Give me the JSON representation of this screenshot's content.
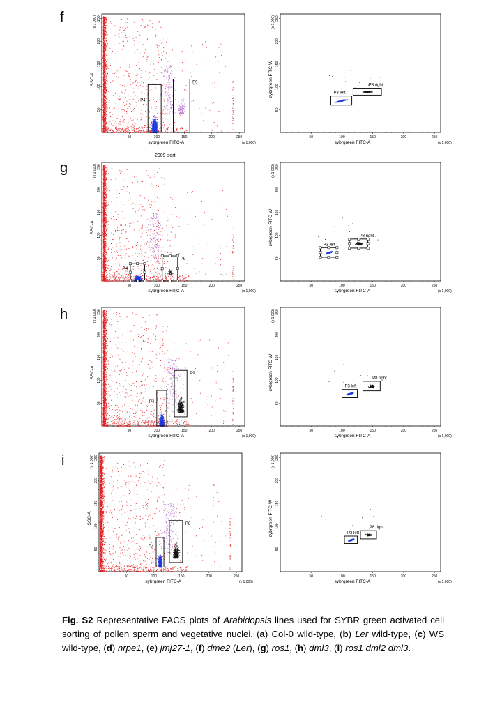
{
  "figure": {
    "panels": [
      {
        "letter": "f",
        "left": {
          "title": "",
          "xlabel": "sybrgreen FITC-A",
          "ylabel": "SSC-A",
          "x_ticks": [
            "50",
            "100",
            "150",
            "200",
            "250"
          ],
          "y_ticks": [
            "50",
            "100",
            "150",
            "200",
            "250"
          ],
          "x_scale": "(x 1,000)",
          "y_scale": "(x 1,000)",
          "gates": [
            {
              "label": "P4",
              "x": [
                84,
                108
              ],
              "y": [
                0,
                105
              ],
              "color": "#000000"
            },
            {
              "label": "P9",
              "x": [
                130,
                160
              ],
              "y": [
                0,
                117
              ],
              "color": "#000000"
            }
          ]
        },
        "right": {
          "xlabel": "sybrgreen FITC-A",
          "ylabel": "sybrgreen FITC-W",
          "x_ticks": [
            "50",
            "100",
            "150",
            "200",
            "250"
          ],
          "y_ticks": [
            "50",
            "100",
            "150",
            "200",
            "250"
          ],
          "x_scale": "(x 1,000)",
          "y_scale": "(x 1,000)",
          "gates": [
            {
              "label": "P3 left",
              "x": [
                82,
                116
              ],
              "y": [
                60,
                80
              ]
            },
            {
              "label": "P8 right",
              "x": [
                118,
                164
              ],
              "y": [
                82,
                97
              ]
            }
          ]
        }
      },
      {
        "letter": "g",
        "left": {
          "title": "2009-sort",
          "xlabel": "sybrgreen FITC-A",
          "ylabel": "SSC-A",
          "x_ticks": [
            "50",
            "100",
            "150",
            "200",
            "250"
          ],
          "y_ticks": [
            "50",
            "100",
            "150",
            "200",
            "250"
          ],
          "x_scale": "(x 1,000)",
          "y_scale": "(x 1,000)",
          "gates": [
            {
              "label": "P4",
              "x": [
                52,
                78
              ],
              "y": [
                0,
                38
              ]
            },
            {
              "label": "P9",
              "x": [
                110,
                138
              ],
              "y": [
                0,
                55
              ]
            }
          ]
        },
        "right": {
          "xlabel": "sybrgreen FITC-A",
          "ylabel": "sybrgreen FITC-W",
          "x_ticks": [
            "50",
            "100",
            "150",
            "200",
            "250"
          ],
          "y_ticks": [
            "50",
            "100",
            "150",
            "200",
            "250"
          ],
          "x_scale": "(x 1,000)",
          "y_scale": "(x 1,000)",
          "gates": [
            {
              "label": "P3 left",
              "x": [
                65,
                92
              ],
              "y": [
                52,
                73
              ]
            },
            {
              "label": "P8 right",
              "x": [
                112,
                142
              ],
              "y": [
                72,
                92
              ]
            }
          ]
        }
      },
      {
        "letter": "h",
        "left": {
          "title": "",
          "xlabel": "sybrgreen FITC-A",
          "ylabel": "SSC-A",
          "x_ticks": [
            "50",
            "100",
            "150",
            "200",
            "250"
          ],
          "y_ticks": [
            "50",
            "100",
            "150",
            "200",
            "250"
          ],
          "x_scale": "(x 1,000)",
          "y_scale": "(x 1,000)",
          "gates": [
            {
              "label": "P4",
              "x": [
                100,
                118
              ],
              "y": [
                0,
                78
              ]
            },
            {
              "label": "P9",
              "x": [
                132,
                155
              ],
              "y": [
                20,
                122
              ]
            }
          ]
        },
        "right": {
          "xlabel": "sybrgreen FITC-A",
          "ylabel": "sybrgreen FITC-W",
          "x_ticks": [
            "50",
            "100",
            "150",
            "200",
            "250"
          ],
          "y_ticks": [
            "50",
            "100",
            "150",
            "200",
            "250"
          ],
          "x_scale": "(x 1,000)",
          "y_scale": "(x 1,000)",
          "gates": [
            {
              "label": "P3 left",
              "x": [
                100,
                125
              ],
              "y": [
                62,
                80
              ]
            },
            {
              "label": "P8 right",
              "x": [
                134,
                162
              ],
              "y": [
                77,
                98
              ]
            }
          ]
        }
      },
      {
        "letter": "i",
        "left": {
          "title": "",
          "xlabel": "sybrgreen FITC-A",
          "ylabel": "SSC-A",
          "x_ticks": [
            "50",
            "100",
            "150",
            "200",
            "250"
          ],
          "y_ticks": [
            "50",
            "100",
            "150",
            "200",
            "250"
          ],
          "x_scale": "(x 1,000)",
          "y_scale": "(x 1,000)",
          "gates": [
            {
              "label": "P4",
              "x": [
                104,
                118
              ],
              "y": [
                10,
                75
              ]
            },
            {
              "label": "P9",
              "x": [
                128,
                152
              ],
              "y": [
                20,
                112
              ]
            }
          ]
        },
        "right": {
          "xlabel": "sybrgreen FITC-A",
          "ylabel": "sybrgreen FITC-W",
          "x_ticks": [
            "50",
            "100",
            "150",
            "200",
            "250"
          ],
          "y_ticks": [
            "50",
            "100",
            "150",
            "200",
            "250"
          ],
          "x_scale": "(x 1,000)",
          "y_scale": "(x 1,000)",
          "gates": [
            {
              "label": "P3 left",
              "x": [
                104,
                125
              ],
              "y": [
                62,
                78
              ]
            },
            {
              "label": "P8 right",
              "x": [
                130,
                156
              ],
              "y": [
                72,
                90
              ]
            }
          ]
        }
      }
    ],
    "colors": {
      "red": "#e31a1c",
      "blue": "#1f3bdc",
      "black": "#111111",
      "violet": "#b070d0"
    }
  },
  "caption": {
    "label": "Fig. S2",
    "text_1": " Representative FACS plots of ",
    "species": "Arabidopsis",
    "text_2": " lines used for SYBR green activated cell sorting of pollen sperm and vegetative nuclei. (",
    "items": [
      {
        "key": "a",
        "text": ") Col-0 wild-type, ("
      },
      {
        "key": "b",
        "text_pre": ") ",
        "italic": "Ler",
        "text": " wild-type, ("
      },
      {
        "key": "c",
        "text": ") WS wild-type, ("
      },
      {
        "key": "d",
        "text_pre": ") ",
        "italic": "nrpe1",
        "text": ", ("
      },
      {
        "key": "e",
        "text_pre": ") ",
        "italic": "jmj27-1",
        "text": ", ("
      },
      {
        "key": "f",
        "text_pre": ") ",
        "italic": "dme2",
        "text_mid": " (",
        "italic2": "Ler",
        "text": "), ("
      },
      {
        "key": "g",
        "text_pre": ") ",
        "italic": "ros1",
        "text": ", ("
      },
      {
        "key": "h",
        "text_pre": ") ",
        "italic": "dml3",
        "text": ", ("
      },
      {
        "key": "i",
        "text_pre": ") ",
        "italic": "ros1 dml2 dml3",
        "text": "."
      }
    ]
  }
}
